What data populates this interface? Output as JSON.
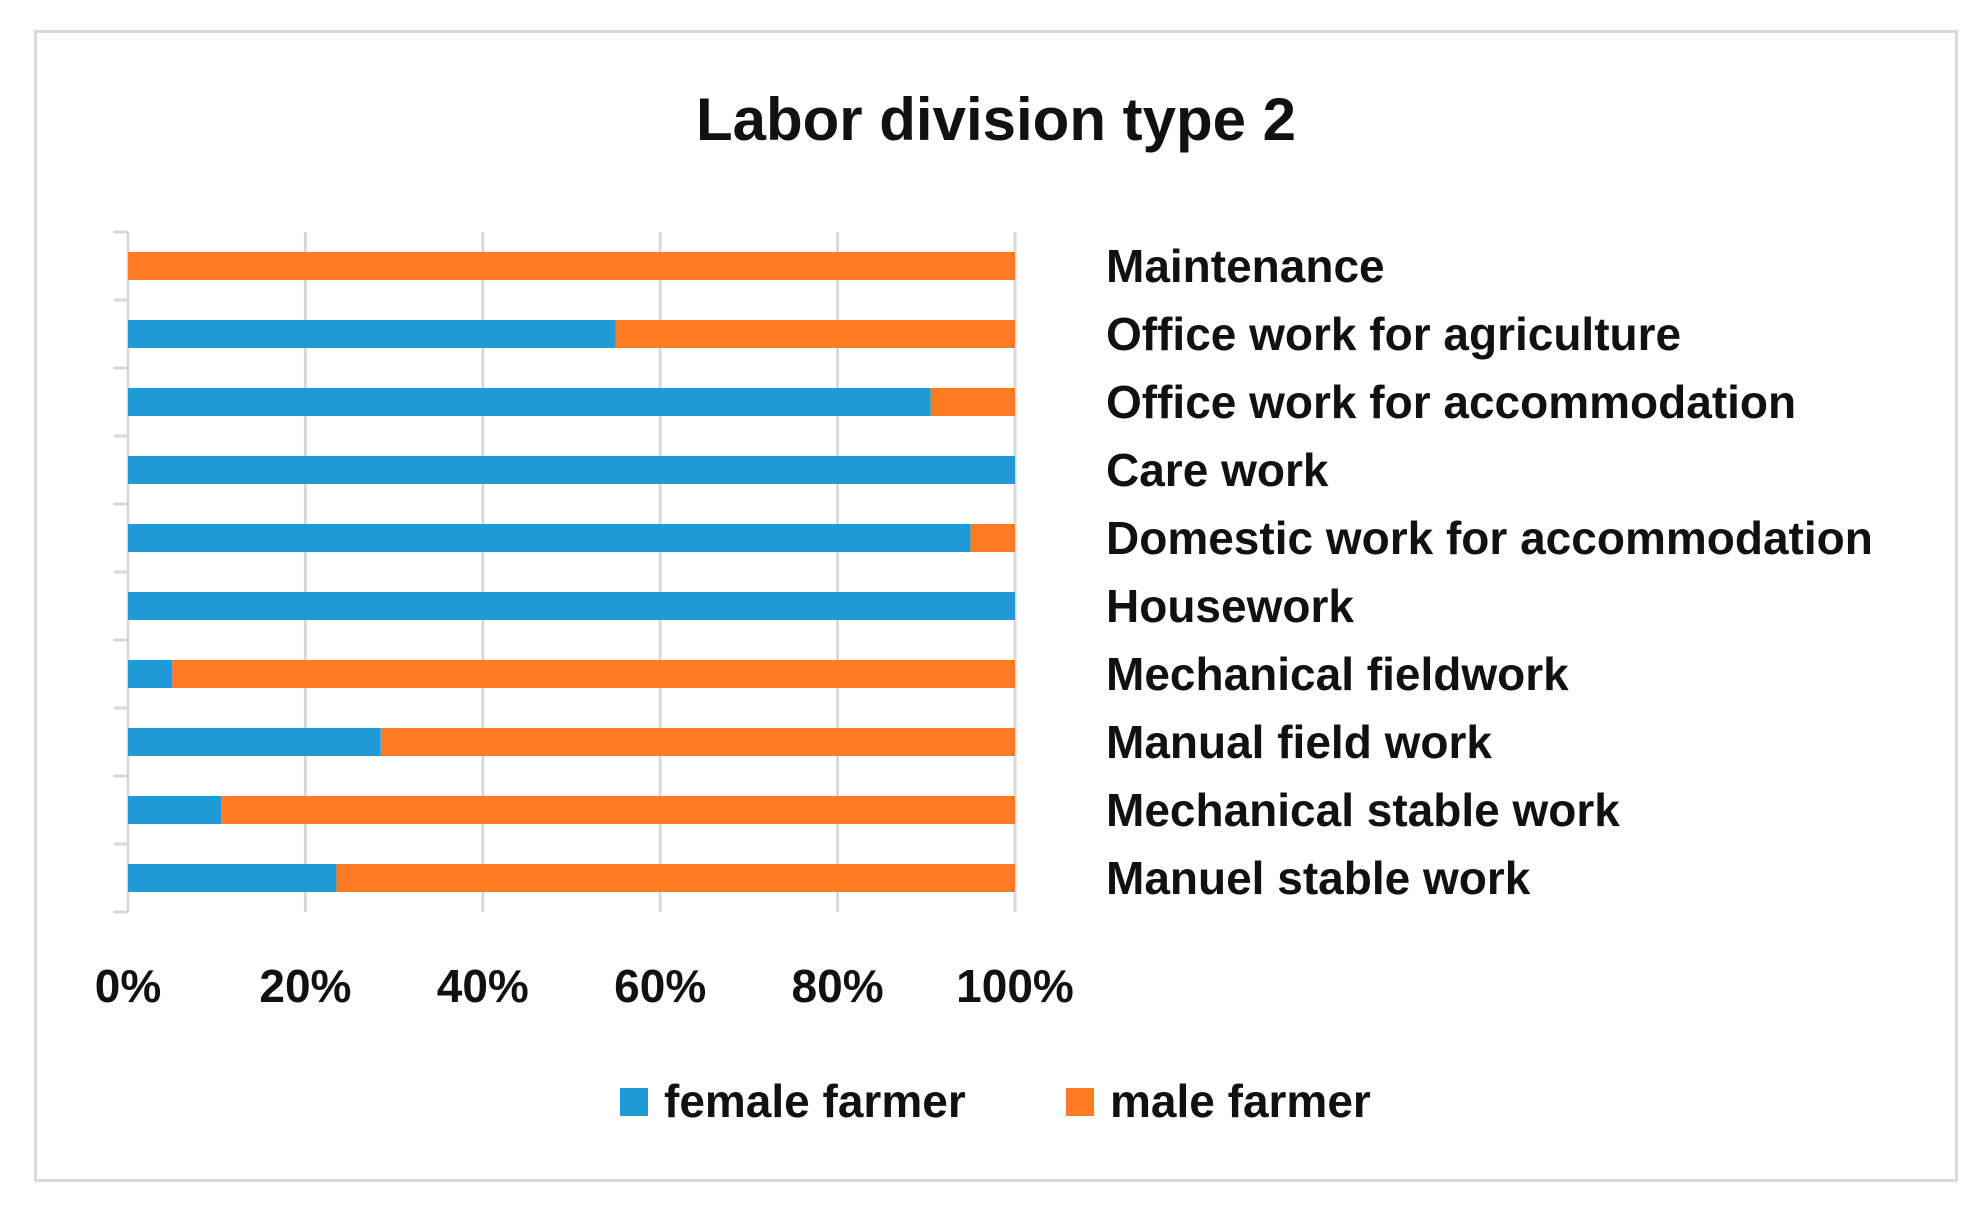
{
  "chart_data": {
    "type": "bar",
    "orientation": "horizontal",
    "stacked": "percent",
    "title": "Labor division type 2",
    "categories": [
      "Maintenance",
      "Office work for agriculture",
      "Office work for accommodation",
      "Care work",
      "Domestic work for accommodation",
      "Housework",
      "Mechanical fieldwork",
      "Manual field work",
      "Mechanical stable work",
      "Manuel stable work"
    ],
    "series": [
      {
        "name": "female farmer",
        "color": "#1f9ad6",
        "values": [
          0,
          55,
          90.5,
          100,
          95,
          100,
          5,
          28.5,
          10.5,
          23.5
        ]
      },
      {
        "name": "male farmer",
        "color": "#fc7b23",
        "values": [
          100,
          45,
          9.5,
          0,
          5,
          0,
          95,
          71.5,
          89.5,
          76.5
        ]
      }
    ],
    "x_ticks": [
      "0%",
      "20%",
      "40%",
      "60%",
      "80%",
      "100%"
    ],
    "xlim": [
      0,
      100
    ],
    "grid": true,
    "category_labels_side": "right",
    "legend_position": "bottom"
  }
}
